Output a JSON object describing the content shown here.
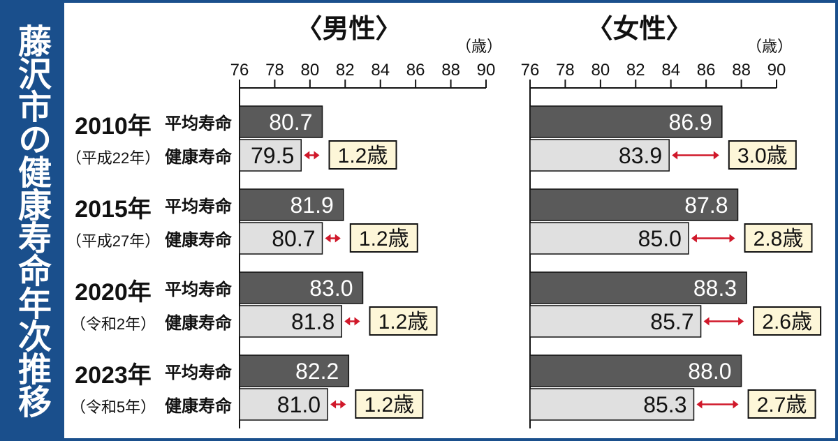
{
  "title": "藤沢市の健康寿命年次推移",
  "unit": "（歳）",
  "colors": {
    "frame": "#1a4f8c",
    "avg_bar": "#5a5a5a",
    "healthy_bar": "#e0e0e0",
    "arrow": "#d0182a",
    "diff_box": "#fdf6d8"
  },
  "chart_data": [
    {
      "type": "bar",
      "title": "〈男性〉",
      "unit": "（歳）",
      "xlim": [
        76,
        90
      ],
      "ticks": [
        "76",
        "78",
        "80",
        "82",
        "84",
        "86",
        "88",
        "90"
      ],
      "categories": [
        {
          "year": "2010年",
          "era": "（平成22年）"
        },
        {
          "year": "2015年",
          "era": "（平成27年）"
        },
        {
          "year": "2020年",
          "era": "（令和2年）"
        },
        {
          "year": "2023年",
          "era": "（令和5年）"
        }
      ],
      "series": [
        {
          "name": "平均寿命",
          "values": [
            80.7,
            81.9,
            83.0,
            82.2
          ],
          "labels": [
            "80.7",
            "81.9",
            "83.0",
            "82.2"
          ]
        },
        {
          "name": "健康寿命",
          "values": [
            79.5,
            80.7,
            81.8,
            81.0
          ],
          "labels": [
            "79.5",
            "80.7",
            "81.8",
            "81.0"
          ]
        }
      ],
      "differences": [
        "1.2歳",
        "1.2歳",
        "1.2歳",
        "1.2歳"
      ]
    },
    {
      "type": "bar",
      "title": "〈女性〉",
      "unit": "（歳）",
      "xlim": [
        76,
        90
      ],
      "ticks": [
        "76",
        "78",
        "80",
        "82",
        "84",
        "86",
        "88",
        "90"
      ],
      "series": [
        {
          "name": "平均寿命",
          "values": [
            86.9,
            87.8,
            88.3,
            88.0
          ],
          "labels": [
            "86.9",
            "87.8",
            "88.3",
            "88.0"
          ]
        },
        {
          "name": "健康寿命",
          "values": [
            83.9,
            85.0,
            85.7,
            85.3
          ],
          "labels": [
            "83.9",
            "85.0",
            "85.7",
            "85.3"
          ]
        }
      ],
      "differences": [
        "3.0歳",
        "2.8歳",
        "2.6歳",
        "2.7歳"
      ]
    }
  ]
}
